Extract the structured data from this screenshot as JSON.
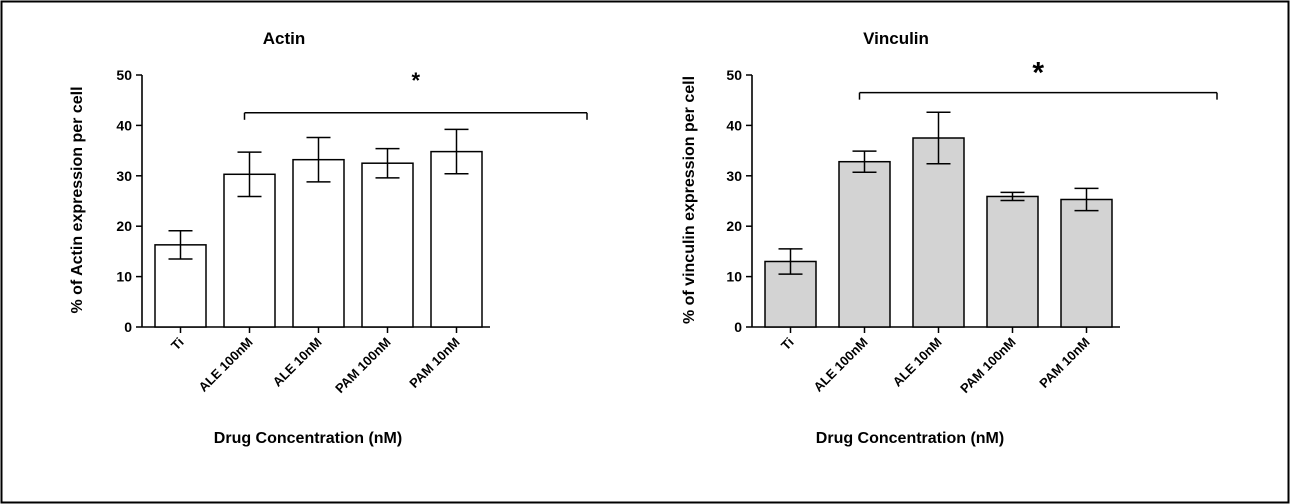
{
  "colors": {
    "bar_fill_actin": "#ffffff",
    "bar_fill_vinculin": "#d3d3d3",
    "stroke": "#000000",
    "frame": "#000000"
  },
  "chart_data": [
    {
      "type": "bar",
      "title": "Actin",
      "xlabel": "Drug Concentration (nM)",
      "ylabel": "% of Actin expression per cell",
      "categories": [
        "Ti",
        "ALE 100nM",
        "ALE 10nM",
        "PAM 100nM",
        "PAM 10nM"
      ],
      "values": [
        16.3,
        30.3,
        33.2,
        32.5,
        34.8
      ],
      "errors": [
        2.8,
        4.4,
        4.4,
        2.9,
        4.4
      ],
      "ylim": [
        0,
        50
      ],
      "yticks": [
        "0",
        "10",
        "20",
        "30",
        "40",
        "50"
      ],
      "significance": {
        "label": "*",
        "from": 1,
        "to": 5,
        "y": 42.5
      },
      "grid": false
    },
    {
      "type": "bar",
      "title": "Vinculin",
      "xlabel": "Drug Concentration (nM)",
      "ylabel": "% of vinculin expression per cell",
      "categories": [
        "Ti",
        "ALE 100nM",
        "ALE 10nM",
        "PAM 100nM",
        "PAM 10nM"
      ],
      "values": [
        13.0,
        32.8,
        37.5,
        25.9,
        25.3
      ],
      "errors": [
        2.5,
        2.1,
        5.1,
        0.8,
        2.2
      ],
      "ylim": [
        0,
        50
      ],
      "yticks": [
        "0",
        "10",
        "20",
        "30",
        "40",
        "50"
      ],
      "significance": {
        "label": "*",
        "from": 1,
        "to": 5,
        "y": 46.5
      },
      "grid": false
    }
  ]
}
